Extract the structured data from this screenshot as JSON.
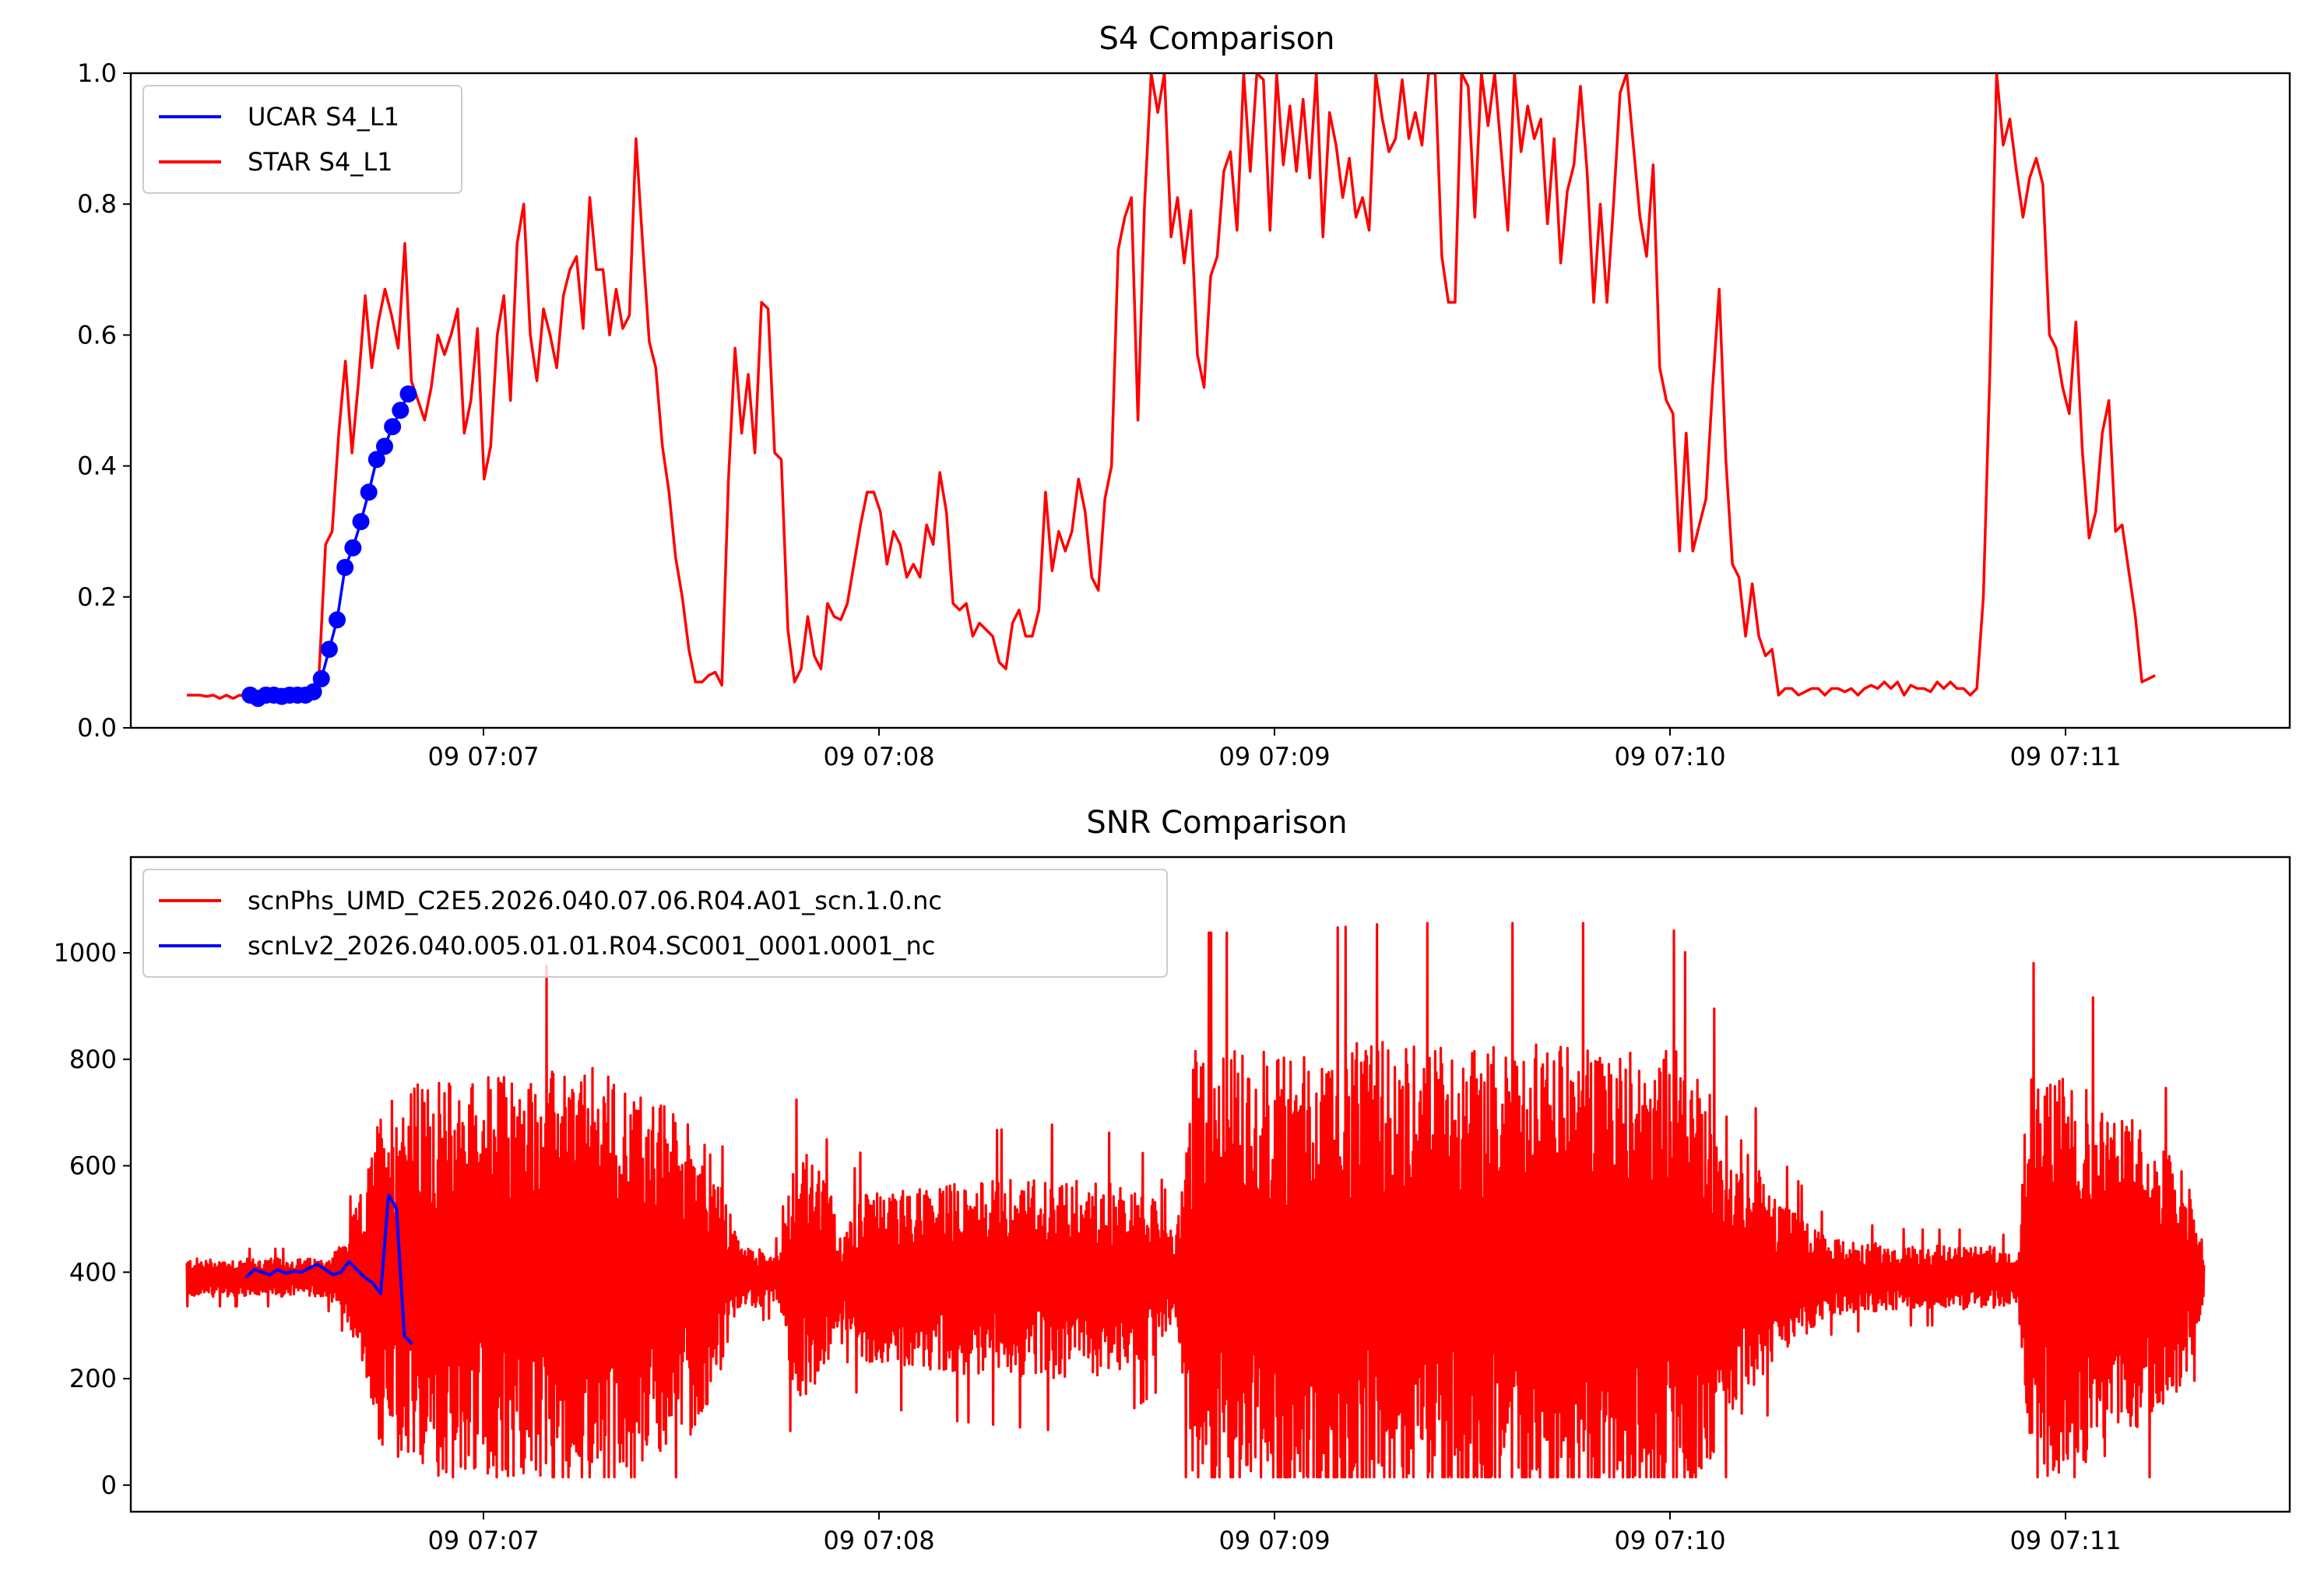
{
  "chart_data": [
    {
      "type": "line",
      "title": "S4 Comparison",
      "xlabel": "",
      "ylabel": "",
      "x_axis": "time",
      "x_ticks": [
        "09 07:07",
        "09 07:08",
        "09 07:09",
        "09 07:10",
        "09 07:11"
      ],
      "y_ticks": [
        "0.0",
        "0.2",
        "0.4",
        "0.6",
        "0.8",
        "1.0"
      ],
      "ylim": [
        0,
        1.0
      ],
      "legend_position": "upper-left",
      "grid": false,
      "series": [
        {
          "name": "UCAR S4_L1",
          "color": "#0000ff",
          "marker": "circle",
          "x_minutes": [
            6.41,
            6.43,
            6.45,
            6.47,
            6.49,
            6.51,
            6.53,
            6.55,
            6.57,
            6.59,
            6.61,
            6.63,
            6.65,
            6.67,
            6.69,
            6.71,
            6.73,
            6.75,
            6.77,
            6.79,
            6.81
          ],
          "y": [
            0.05,
            0.045,
            0.05,
            0.05,
            0.048,
            0.05,
            0.05,
            0.05,
            0.055,
            0.075,
            0.12,
            0.165,
            0.245,
            0.275,
            0.315,
            0.36,
            0.41,
            0.43,
            0.46,
            0.485,
            0.51
          ]
        },
        {
          "name": "STAR S4_L1",
          "color": "#ff0000",
          "x_start_minutes": 6.25,
          "x_step_minutes": 0.0167,
          "y": [
            0.05,
            0.05,
            0.05,
            0.048,
            0.05,
            0.045,
            0.05,
            0.045,
            0.05,
            0.048,
            0.05,
            0.05,
            0.055,
            0.05,
            0.055,
            0.05,
            0.055,
            0.05,
            0.055,
            0.06,
            0.08,
            0.28,
            0.3,
            0.45,
            0.56,
            0.42,
            0.53,
            0.66,
            0.55,
            0.62,
            0.67,
            0.63,
            0.58,
            0.74,
            0.53,
            0.5,
            0.47,
            0.52,
            0.6,
            0.57,
            0.6,
            0.64,
            0.45,
            0.5,
            0.61,
            0.38,
            0.43,
            0.6,
            0.66,
            0.5,
            0.74,
            0.8,
            0.6,
            0.53,
            0.64,
            0.6,
            0.55,
            0.66,
            0.7,
            0.72,
            0.61,
            0.81,
            0.7,
            0.7,
            0.6,
            0.67,
            0.61,
            0.63,
            0.9,
            0.74,
            0.59,
            0.55,
            0.43,
            0.36,
            0.26,
            0.2,
            0.12,
            0.07,
            0.07,
            0.08,
            0.085,
            0.065,
            0.38,
            0.58,
            0.45,
            0.54,
            0.42,
            0.65,
            0.64,
            0.42,
            0.41,
            0.15,
            0.07,
            0.09,
            0.17,
            0.11,
            0.09,
            0.19,
            0.17,
            0.165,
            0.19,
            0.25,
            0.31,
            0.36,
            0.36,
            0.33,
            0.25,
            0.3,
            0.28,
            0.23,
            0.25,
            0.23,
            0.31,
            0.28,
            0.39,
            0.33,
            0.19,
            0.18,
            0.19,
            0.14,
            0.16,
            0.15,
            0.14,
            0.1,
            0.09,
            0.16,
            0.18,
            0.14,
            0.14,
            0.18,
            0.36,
            0.24,
            0.3,
            0.27,
            0.3,
            0.38,
            0.33,
            0.23,
            0.21,
            0.35,
            0.4,
            0.73,
            0.78,
            0.81,
            0.47,
            0.8,
            1.0,
            0.94,
            1.0,
            0.75,
            0.81,
            0.71,
            0.79,
            0.57,
            0.52,
            0.69,
            0.72,
            0.85,
            0.88,
            0.76,
            1.0,
            0.85,
            1.0,
            0.99,
            0.76,
            1.0,
            0.86,
            0.95,
            0.85,
            0.96,
            0.84,
            1.0,
            0.75,
            0.94,
            0.89,
            0.81,
            0.87,
            0.78,
            0.81,
            0.76,
            1.0,
            0.93,
            0.88,
            0.9,
            0.99,
            0.9,
            0.94,
            0.89,
            1.0,
            1.0,
            0.72,
            0.65,
            0.65,
            1.0,
            0.98,
            0.78,
            1.0,
            0.92,
            1.0,
            0.88,
            0.76,
            1.0,
            0.88,
            0.95,
            0.9,
            0.93,
            0.77,
            0.9,
            0.71,
            0.82,
            0.86,
            0.98,
            0.85,
            0.65,
            0.8,
            0.65,
            0.8,
            0.97,
            1.0,
            0.89,
            0.78,
            0.72,
            0.86,
            0.55,
            0.5,
            0.48,
            0.27,
            0.45,
            0.27,
            0.31,
            0.35,
            0.52,
            0.67,
            0.41,
            0.25,
            0.23,
            0.14,
            0.22,
            0.14,
            0.11,
            0.12,
            0.05,
            0.06,
            0.06,
            0.05,
            0.055,
            0.06,
            0.06,
            0.05,
            0.06,
            0.06,
            0.055,
            0.06,
            0.05,
            0.06,
            0.065,
            0.06,
            0.07,
            0.06,
            0.07,
            0.05,
            0.065,
            0.06,
            0.06,
            0.055,
            0.07,
            0.06,
            0.07,
            0.06,
            0.06,
            0.05,
            0.06,
            0.2,
            0.55,
            1.0,
            0.89,
            0.93,
            0.85,
            0.78,
            0.84,
            0.87,
            0.83,
            0.6,
            0.58,
            0.52,
            0.48,
            0.62,
            0.42,
            0.29,
            0.33,
            0.45,
            0.5,
            0.3,
            0.31,
            0.24,
            0.17,
            0.07,
            0.075,
            0.08
          ]
        }
      ]
    },
    {
      "type": "line",
      "title": "SNR Comparison",
      "xlabel": "",
      "ylabel": "",
      "x_axis": "time",
      "x_ticks": [
        "09 07:07",
        "09 07:08",
        "09 07:09",
        "09 07:10",
        "09 07:11"
      ],
      "y_ticks": [
        "0",
        "200",
        "400",
        "600",
        "800",
        "1000"
      ],
      "ylim": [
        -50,
        1180
      ],
      "legend_position": "upper-left",
      "grid": false,
      "series": [
        {
          "name": "scnPhs_UMD_C2E5.2026.040.07.06.R04.A01_scn.1.0.nc",
          "color": "#ff0000",
          "baseline": 390,
          "amplitude_envelope": {
            "minutes": [
              6.25,
              6.6,
              6.65,
              6.7,
              6.75,
              7.0,
              7.3,
              7.55,
              7.65,
              7.75,
              7.78,
              7.82,
              7.88,
              7.9,
              7.95,
              8.2,
              8.45,
              8.6,
              8.7,
              8.75,
              8.8,
              9.0,
              9.3,
              9.6,
              9.8,
              10.0,
              10.15,
              10.25,
              10.4,
              10.6,
              10.8,
              10.88,
              10.9,
              11.0,
              11.15,
              11.3,
              11.35
            ],
            "half_range": [
              30,
              30,
              60,
              150,
              300,
              320,
              330,
              240,
              50,
              40,
              180,
              200,
              130,
              60,
              130,
              150,
              160,
              150,
              120,
              60,
              360,
              360,
              370,
              370,
              370,
              370,
              250,
              140,
              60,
              50,
              50,
              40,
              330,
              320,
              260,
              170,
              50
            ]
          }
        },
        {
          "name": "scnLv2_2026.040.005.01.01.R04.SC001_0001.0001_nc",
          "color": "#0000ff",
          "x_minutes": [
            6.4,
            6.42,
            6.44,
            6.46,
            6.48,
            6.5,
            6.52,
            6.54,
            6.56,
            6.58,
            6.6,
            6.62,
            6.64,
            6.66,
            6.68,
            6.7,
            6.72,
            6.74,
            6.76,
            6.78,
            6.8,
            6.82
          ],
          "y": [
            390,
            405,
            400,
            395,
            405,
            398,
            402,
            400,
            408,
            415,
            405,
            395,
            400,
            420,
            405,
            390,
            380,
            360,
            545,
            520,
            280,
            265
          ]
        }
      ]
    }
  ]
}
